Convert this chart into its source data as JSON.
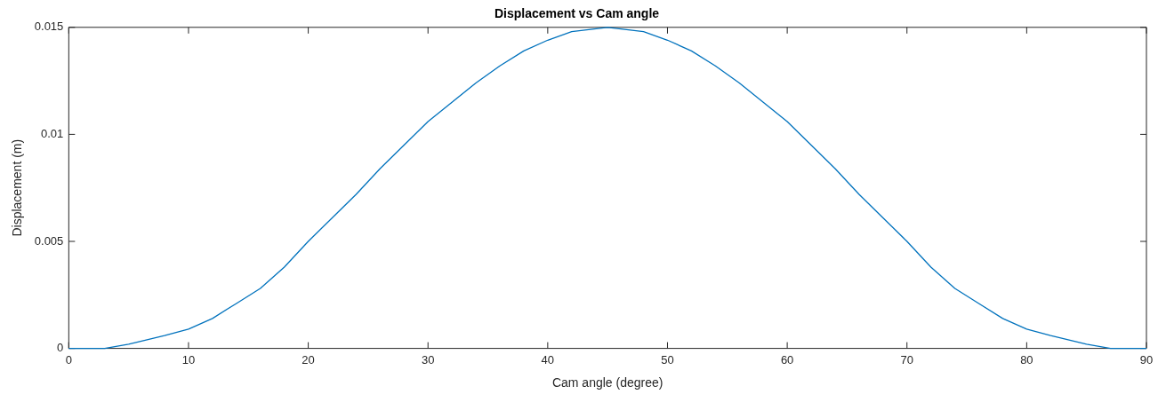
{
  "chart_data": {
    "type": "line",
    "title": "Displacement vs Cam angle",
    "xlabel": "Cam angle (degree)",
    "ylabel": "Displacement (m)",
    "x": [
      0,
      3,
      5,
      8,
      10,
      12,
      14,
      16,
      18,
      20,
      22,
      24,
      26,
      28,
      30,
      32,
      34,
      36,
      38,
      40,
      42,
      45,
      48,
      50,
      52,
      54,
      56,
      58,
      60,
      62,
      64,
      66,
      68,
      70,
      72,
      74,
      76,
      78,
      80,
      82,
      85,
      87,
      90
    ],
    "series": [
      {
        "color": "#0072bd",
        "values": [
          0,
          0,
          0.0002,
          0.0006,
          0.0009,
          0.0014,
          0.0021,
          0.0028,
          0.0038,
          0.005,
          0.0061,
          0.0072,
          0.0084,
          0.0095,
          0.0106,
          0.0115,
          0.0124,
          0.0132,
          0.0139,
          0.0144,
          0.0148,
          0.015,
          0.0148,
          0.0144,
          0.0139,
          0.0132,
          0.0124,
          0.0115,
          0.0106,
          0.0095,
          0.0084,
          0.0072,
          0.0061,
          0.005,
          0.0038,
          0.0028,
          0.0021,
          0.0014,
          0.0009,
          0.0006,
          0.0002,
          0,
          0
        ]
      }
    ],
    "xlim": [
      0,
      90
    ],
    "xticks": [
      0,
      10,
      20,
      30,
      40,
      50,
      60,
      70,
      80,
      90
    ],
    "ylim": [
      0,
      0.015
    ],
    "yticks": [
      0,
      0.005,
      0.01,
      0.015
    ],
    "grid": false,
    "legend": false,
    "marker": "none",
    "line_style": "solid"
  }
}
